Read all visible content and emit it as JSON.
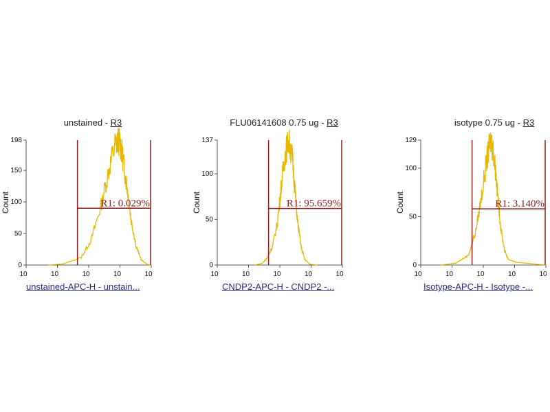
{
  "chart_data": [
    {
      "type": "area",
      "title": "unstained -",
      "region_link": "R3",
      "xlabel": "unstained-APC-H - unstain...",
      "ylabel": "Count",
      "x_tick_labels": [
        "10",
        "10",
        "10",
        "10",
        "10"
      ],
      "y_ticks": [
        0,
        50,
        100,
        150,
        198
      ],
      "ylim": [
        0,
        198
      ],
      "xlim_decades": [
        0,
        5
      ],
      "series_color": "#e6b800",
      "gate_color": "#8b1c1c",
      "gate": {
        "label": "R1: 0.029%",
        "x_start_decade": 2.05,
        "x_end_decade": 5,
        "y_level": 90
      },
      "histogram": {
        "x_decade": [
          0.9,
          1.5,
          2.2,
          2.6,
          3.0,
          3.3,
          3.55,
          3.7,
          3.8,
          3.9,
          4.05,
          4.2,
          4.4,
          4.6,
          4.85,
          5.0
        ],
        "y": [
          0,
          2,
          12,
          40,
          95,
          150,
          190,
          198,
          185,
          160,
          120,
          70,
          30,
          8,
          1,
          0
        ]
      }
    },
    {
      "type": "area",
      "title": "FLU06141608 0.75 ug -",
      "region_link": "R3",
      "xlabel": "CNDP2-APC-H - CNDP2 -...",
      "ylabel": "Count",
      "x_tick_labels": [
        "10",
        "10",
        "10",
        "10",
        "10"
      ],
      "y_ticks": [
        0,
        50,
        100,
        137
      ],
      "ylim": [
        0,
        137
      ],
      "xlim_decades": [
        0,
        5
      ],
      "series_color": "#e6b800",
      "gate_color": "#8b1c1c",
      "gate": {
        "label": "R1: 95.659%",
        "x_start_decade": 2.05,
        "x_end_decade": 5,
        "y_level": 62
      },
      "histogram": {
        "x_decade": [
          1.5,
          1.8,
          2.0,
          2.2,
          2.4,
          2.55,
          2.7,
          2.85,
          3.0,
          3.1,
          3.2,
          3.35,
          3.5,
          3.7,
          4.0
        ],
        "y": [
          0,
          2,
          8,
          20,
          45,
          85,
          120,
          137,
          118,
          85,
          50,
          20,
          6,
          1,
          0
        ]
      }
    },
    {
      "type": "area",
      "title": "isotype 0.75 ug -",
      "region_link": "R3",
      "xlabel": "Isotype-APC-H - Isotype -...",
      "ylabel": "Count",
      "x_tick_labels": [
        "10",
        "10",
        "10",
        "10",
        "10"
      ],
      "y_ticks": [
        0,
        50,
        100,
        129
      ],
      "ylim": [
        0,
        129
      ],
      "xlim_decades": [
        0,
        5
      ],
      "series_color": "#e6b800",
      "gate_color": "#8b1c1c",
      "gate": {
        "label": "R1: 3.140%",
        "x_start_decade": 2.05,
        "x_end_decade": 5,
        "y_level": 58
      },
      "histogram": {
        "x_decade": [
          0.8,
          1.4,
          1.9,
          2.2,
          2.45,
          2.65,
          2.8,
          2.9,
          3.0,
          3.1,
          3.2,
          3.35,
          3.5,
          3.8,
          4.2,
          4.6,
          5.0
        ],
        "y": [
          0,
          2,
          10,
          35,
          75,
          110,
          129,
          118,
          95,
          65,
          38,
          15,
          6,
          3,
          2,
          1,
          0
        ]
      }
    }
  ]
}
